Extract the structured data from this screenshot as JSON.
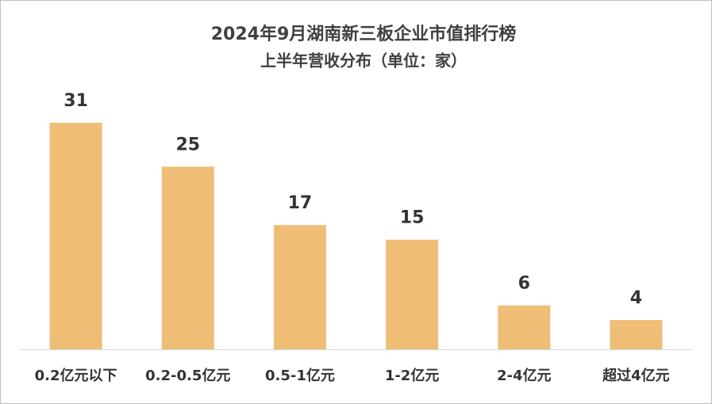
{
  "chart_data": {
    "type": "bar",
    "title": "2024年9月湖南新三板企业市值排行榜",
    "subtitle": "上半年营收分布（单位：家）",
    "categories": [
      "0.2亿元以下",
      "0.2-0.5亿元",
      "0.5-1亿元",
      "1-2亿元",
      "2-4亿元",
      "超过4亿元"
    ],
    "values": [
      31,
      25,
      17,
      15,
      6,
      4
    ],
    "color": "#f0bd76"
  }
}
